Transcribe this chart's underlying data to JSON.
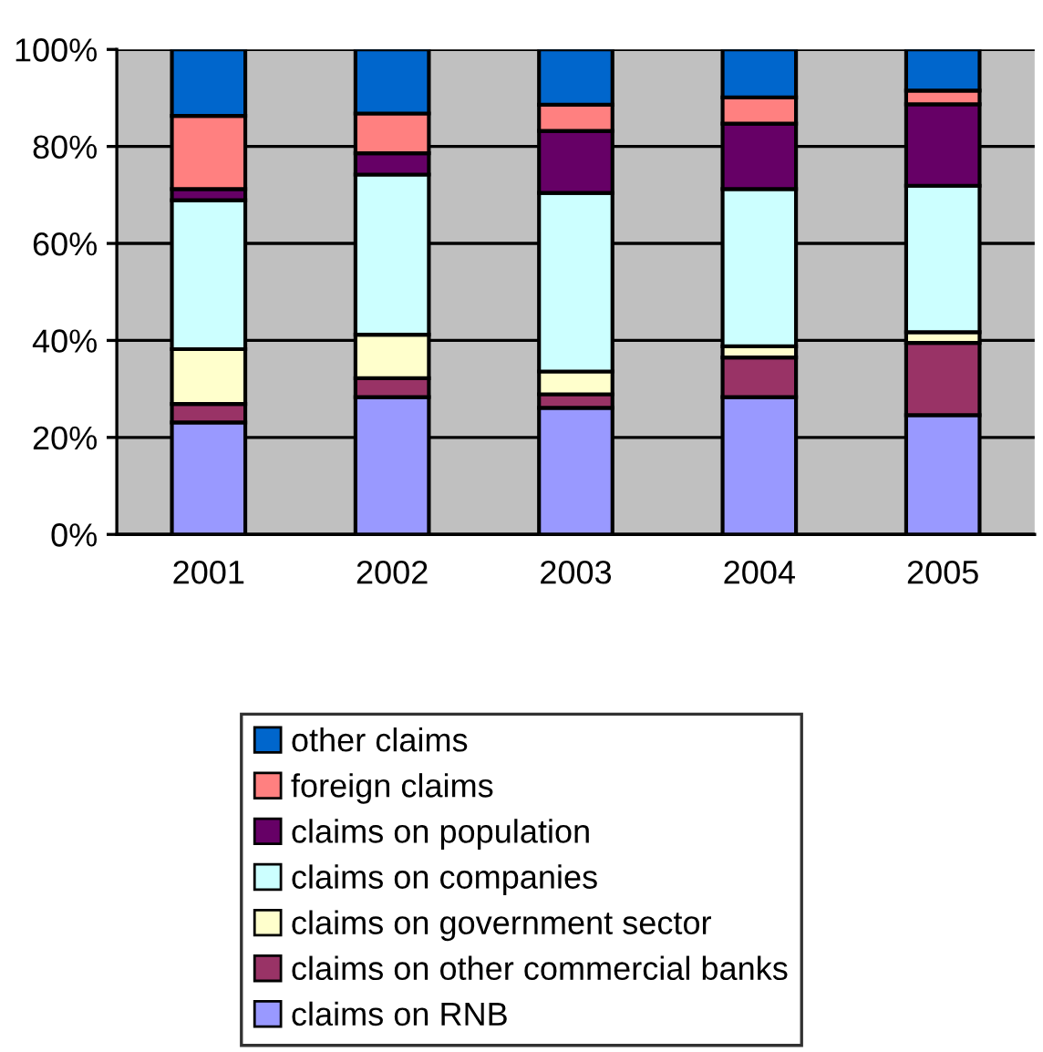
{
  "chart_data": {
    "type": "bar",
    "stacked": true,
    "categories": [
      "2001",
      "2002",
      "2003",
      "2004",
      "2005"
    ],
    "series": [
      {
        "name": "claims on RNB",
        "color": "#9999ff",
        "values": [
          23.1,
          28.3,
          26.1,
          28.3,
          24.6
        ]
      },
      {
        "name": "claims on other commercial banks",
        "color": "#993366",
        "values": [
          3.8,
          3.9,
          2.8,
          8.2,
          14.9
        ]
      },
      {
        "name": "claims on government sector",
        "color": "#ffffcc",
        "values": [
          11.3,
          9.0,
          4.7,
          2.3,
          2.2
        ]
      },
      {
        "name": "claims on companies",
        "color": "#ccffff",
        "values": [
          30.7,
          33.0,
          36.8,
          32.4,
          30.2
        ]
      },
      {
        "name": "claims on population",
        "color": "#660066",
        "values": [
          2.3,
          4.4,
          12.8,
          13.5,
          16.8
        ]
      },
      {
        "name": "foreign claims",
        "color": "#ff8080",
        "values": [
          15.1,
          8.2,
          5.4,
          5.4,
          2.8
        ]
      },
      {
        "name": "other claims",
        "color": "#0066cc",
        "values": [
          13.7,
          13.2,
          11.4,
          9.9,
          8.5
        ]
      }
    ],
    "ylim": [
      0,
      100
    ],
    "yticks": [
      {
        "value": 0,
        "label": "0%"
      },
      {
        "value": 20,
        "label": "20%"
      },
      {
        "value": 40,
        "label": "40%"
      },
      {
        "value": 60,
        "label": "60%"
      },
      {
        "value": 80,
        "label": "80%"
      },
      {
        "value": 100,
        "label": "100%"
      }
    ],
    "grid": "y",
    "legend": "bottom"
  }
}
